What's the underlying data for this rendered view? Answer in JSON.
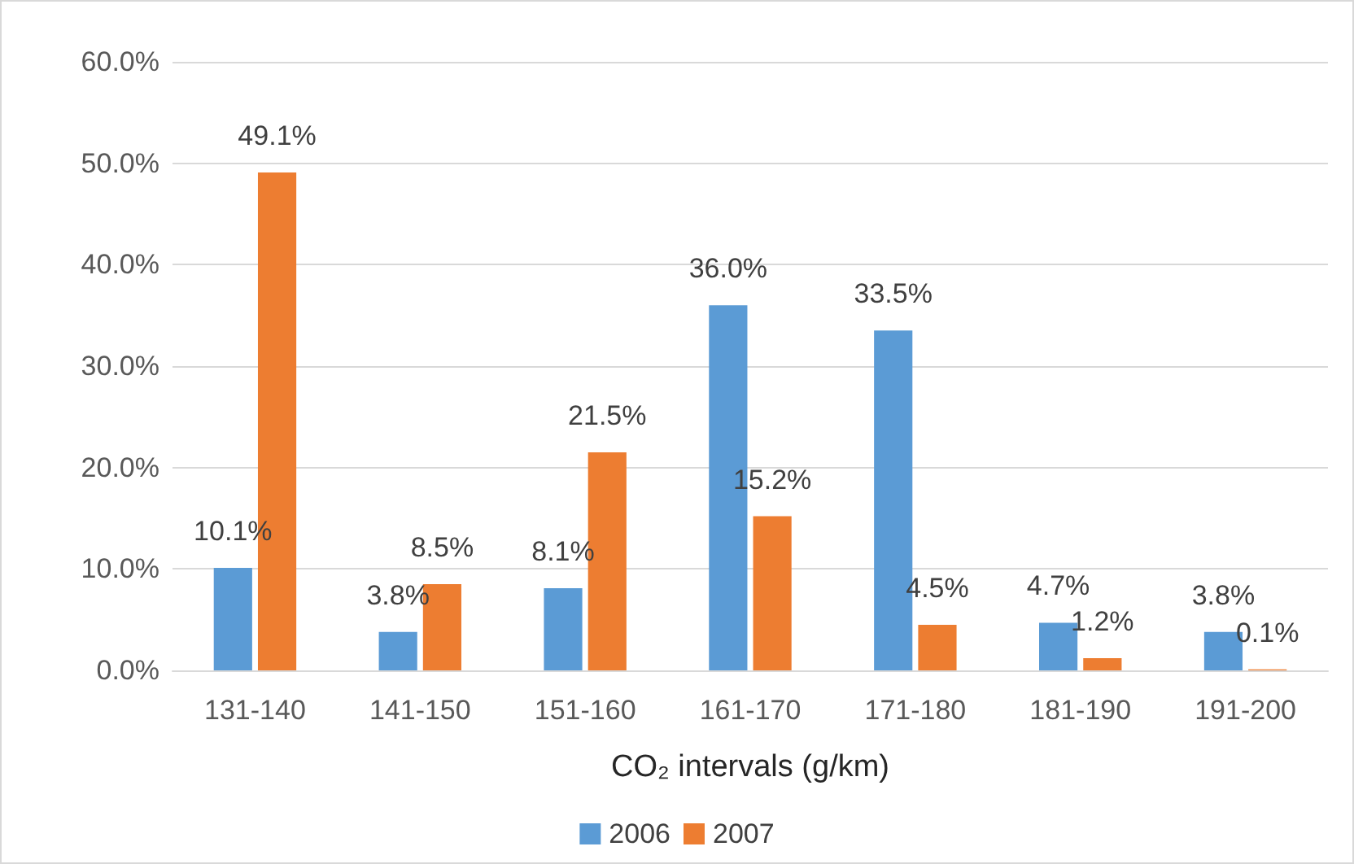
{
  "chart_data": {
    "type": "bar",
    "xlabel": "CO₂ intervals (g/km)",
    "categories": [
      "131-140",
      "141-150",
      "151-160",
      "161-170",
      "171-180",
      "181-190",
      "191-200"
    ],
    "series": [
      {
        "name": "2006",
        "color": "#5b9bd5",
        "values": [
          10.1,
          3.8,
          8.1,
          36.0,
          33.5,
          4.7,
          3.8
        ],
        "value_labels": [
          "10.1%",
          "3.8%",
          "8.1%",
          "36.0%",
          "33.5%",
          "4.7%",
          "3.8%"
        ]
      },
      {
        "name": "2007",
        "color": "#ed7d31",
        "values": [
          49.1,
          8.5,
          21.5,
          15.2,
          4.5,
          1.2,
          0.1
        ],
        "value_labels": [
          "49.1%",
          "8.5%",
          "21.5%",
          "15.2%",
          "4.5%",
          "1.2%",
          "0.1%"
        ]
      }
    ],
    "ylim": [
      0,
      60
    ],
    "yticks": [
      {
        "value": 0,
        "label": "0.0%"
      },
      {
        "value": 10,
        "label": "10.0%"
      },
      {
        "value": 20,
        "label": "20.0%"
      },
      {
        "value": 30,
        "label": "30.0%"
      },
      {
        "value": 40,
        "label": "40.0%"
      },
      {
        "value": 50,
        "label": "50.0%"
      },
      {
        "value": 60,
        "label": "60.0%"
      }
    ],
    "grid": "y",
    "legend": "bottom"
  }
}
